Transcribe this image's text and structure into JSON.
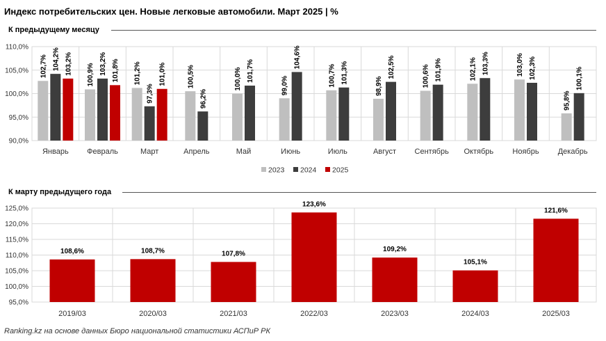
{
  "title": "Индекс потребительских цен. Новые легковые автомобили. Март 2025 | %",
  "source": "Ranking.kz на основе данных Бюро национальной статистики АСПиР РК",
  "colors": {
    "2023": "#bfbfbf",
    "2024": "#3d3d3d",
    "2025": "#c00000",
    "grid": "#d9d9d9"
  },
  "chart_data": [
    {
      "type": "bar",
      "title": "К предыдущему месяцу",
      "categories": [
        "Январь",
        "Февраль",
        "Март",
        "Апрель",
        "Май",
        "Июнь",
        "Июль",
        "Август",
        "Сентябрь",
        "Октябрь",
        "Ноябрь",
        "Декабрь"
      ],
      "series": [
        {
          "name": "2023",
          "values": [
            102.7,
            100.9,
            101.2,
            100.5,
            100.0,
            99.0,
            100.7,
            98.9,
            100.6,
            102.1,
            103.0,
            95.8
          ],
          "labels": [
            "102,7%",
            "100,9%",
            "101,2%",
            "100,5%",
            "100,0%",
            "99,0%",
            "100,7%",
            "98,9%",
            "100,6%",
            "102,1%",
            "103,0%",
            "95,8%"
          ]
        },
        {
          "name": "2024",
          "values": [
            104.2,
            103.2,
            97.3,
            96.2,
            101.7,
            104.6,
            101.3,
            102.5,
            101.9,
            103.3,
            102.3,
            100.1
          ],
          "labels": [
            "104,2%",
            "103,2%",
            "97,3%",
            "96,2%",
            "101,7%",
            "104,6%",
            "101,3%",
            "102,5%",
            "101,9%",
            "103,3%",
            "102,3%",
            "100,1%"
          ]
        },
        {
          "name": "2025",
          "values": [
            103.2,
            101.8,
            101.0,
            null,
            null,
            null,
            null,
            null,
            null,
            null,
            null,
            null
          ],
          "labels": [
            "103,2%",
            "101,8%",
            "101,0%",
            null,
            null,
            null,
            null,
            null,
            null,
            null,
            null,
            null
          ]
        }
      ],
      "ylim": [
        90,
        110
      ],
      "yticks": [
        90,
        95,
        100,
        105,
        110
      ],
      "ytick_labels": [
        "90,0%",
        "95,0%",
        "100,0%",
        "105,0%",
        "110,0%"
      ],
      "grid": true,
      "legend": "bottom"
    },
    {
      "type": "bar",
      "title": "К марту предыдущего года",
      "categories": [
        "2019/03",
        "2020/03",
        "2021/03",
        "2022/03",
        "2023/03",
        "2024/03",
        "2025/03"
      ],
      "values": [
        108.6,
        108.7,
        107.8,
        123.6,
        109.2,
        105.1,
        121.6
      ],
      "labels": [
        "108,6%",
        "108,7%",
        "107,8%",
        "123,6%",
        "109,2%",
        "105,1%",
        "121,6%"
      ],
      "ylim": [
        95,
        125
      ],
      "yticks": [
        95,
        100,
        105,
        110,
        115,
        120,
        125
      ],
      "ytick_labels": [
        "95,0%",
        "100,0%",
        "105,0%",
        "110,0%",
        "115,0%",
        "120,0%",
        "125,0%"
      ],
      "grid": true
    }
  ]
}
